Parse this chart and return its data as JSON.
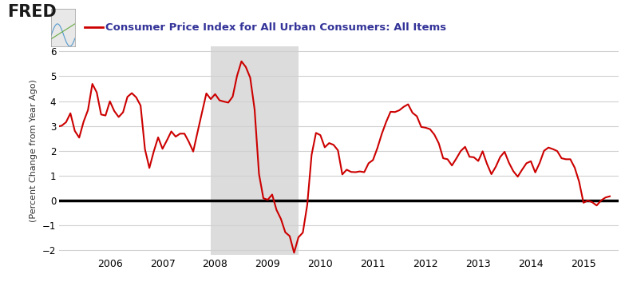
{
  "title": "Consumer Price Index for All Urban Consumers: All Items",
  "ylabel": "(Percent Change from Year Ago)",
  "line_color": "#cc0000",
  "zero_line_color": "#000000",
  "background_color": "#ffffff",
  "plot_bg_color": "#ffffff",
  "grid_color": "#d0d0d0",
  "recession_color": "#dcdcdc",
  "recession_start": 2007.917,
  "recession_end": 2009.583,
  "ylim": [
    -2.2,
    6.2
  ],
  "yticks": [
    -2,
    -1,
    0,
    1,
    2,
    3,
    4,
    5,
    6
  ],
  "cpi_data": {
    "2005-01": 2.97,
    "2005-02": 3.01,
    "2005-03": 3.15,
    "2005-04": 3.51,
    "2005-05": 2.8,
    "2005-06": 2.53,
    "2005-07": 3.17,
    "2005-08": 3.64,
    "2005-09": 4.69,
    "2005-10": 4.35,
    "2005-11": 3.46,
    "2005-12": 3.42,
    "2006-01": 3.99,
    "2006-02": 3.6,
    "2006-03": 3.36,
    "2006-04": 3.55,
    "2006-05": 4.17,
    "2006-06": 4.32,
    "2006-07": 4.15,
    "2006-08": 3.82,
    "2006-09": 2.06,
    "2006-10": 1.31,
    "2006-11": 1.97,
    "2006-12": 2.54,
    "2007-01": 2.08,
    "2007-02": 2.42,
    "2007-03": 2.78,
    "2007-04": 2.57,
    "2007-05": 2.69,
    "2007-06": 2.69,
    "2007-07": 2.36,
    "2007-08": 1.97,
    "2007-09": 2.76,
    "2007-10": 3.54,
    "2007-11": 4.31,
    "2007-12": 4.08,
    "2008-01": 4.28,
    "2008-02": 4.03,
    "2008-03": 3.98,
    "2008-04": 3.94,
    "2008-05": 4.18,
    "2008-06": 5.02,
    "2008-07": 5.6,
    "2008-08": 5.37,
    "2008-09": 4.94,
    "2008-10": 3.66,
    "2008-11": 1.07,
    "2008-12": 0.09,
    "2009-01": 0.03,
    "2009-02": 0.24,
    "2009-03": -0.38,
    "2009-04": -0.74,
    "2009-05": -1.28,
    "2009-06": -1.43,
    "2009-07": -2.1,
    "2009-08": -1.48,
    "2009-09": -1.29,
    "2009-10": -0.18,
    "2009-11": 1.84,
    "2009-12": 2.72,
    "2010-01": 2.63,
    "2010-02": 2.14,
    "2010-03": 2.31,
    "2010-04": 2.24,
    "2010-05": 2.02,
    "2010-06": 1.05,
    "2010-07": 1.24,
    "2010-08": 1.15,
    "2010-09": 1.14,
    "2010-10": 1.17,
    "2010-11": 1.14,
    "2010-12": 1.5,
    "2011-01": 1.63,
    "2011-02": 2.11,
    "2011-03": 2.68,
    "2011-04": 3.16,
    "2011-05": 3.57,
    "2011-06": 3.56,
    "2011-07": 3.63,
    "2011-08": 3.77,
    "2011-09": 3.87,
    "2011-10": 3.53,
    "2011-11": 3.39,
    "2011-12": 2.96,
    "2012-01": 2.93,
    "2012-02": 2.87,
    "2012-03": 2.65,
    "2012-04": 2.3,
    "2012-05": 1.7,
    "2012-06": 1.66,
    "2012-07": 1.41,
    "2012-08": 1.69,
    "2012-09": 1.99,
    "2012-10": 2.16,
    "2012-11": 1.76,
    "2012-12": 1.74,
    "2013-01": 1.59,
    "2013-02": 1.98,
    "2013-03": 1.47,
    "2013-04": 1.06,
    "2013-05": 1.36,
    "2013-06": 1.75,
    "2013-07": 1.96,
    "2013-08": 1.52,
    "2013-09": 1.18,
    "2013-10": 0.96,
    "2013-11": 1.24,
    "2013-12": 1.5,
    "2014-01": 1.58,
    "2014-02": 1.13,
    "2014-03": 1.51,
    "2014-04": 2.0,
    "2014-05": 2.13,
    "2014-06": 2.07,
    "2014-07": 1.99,
    "2014-08": 1.7,
    "2014-09": 1.66,
    "2014-10": 1.66,
    "2014-11": 1.32,
    "2014-12": 0.76,
    "2015-01": -0.09,
    "2015-02": 0.0,
    "2015-03": -0.07,
    "2015-04": -0.2,
    "2015-05": 0.0,
    "2015-06": 0.12,
    "2015-07": 0.17
  },
  "xlim_start": 2005.04,
  "xlim_end": 2015.67,
  "xtick_positions": [
    2006,
    2007,
    2008,
    2009,
    2010,
    2011,
    2012,
    2013,
    2014,
    2015
  ],
  "xtick_labels": [
    "2006",
    "2007",
    "2008",
    "2009",
    "2010",
    "2011",
    "2012",
    "2013",
    "2014",
    "2015"
  ],
  "fred_color": "#1a1a1a",
  "title_color": "#333399",
  "legend_line_color": "#cc0000"
}
